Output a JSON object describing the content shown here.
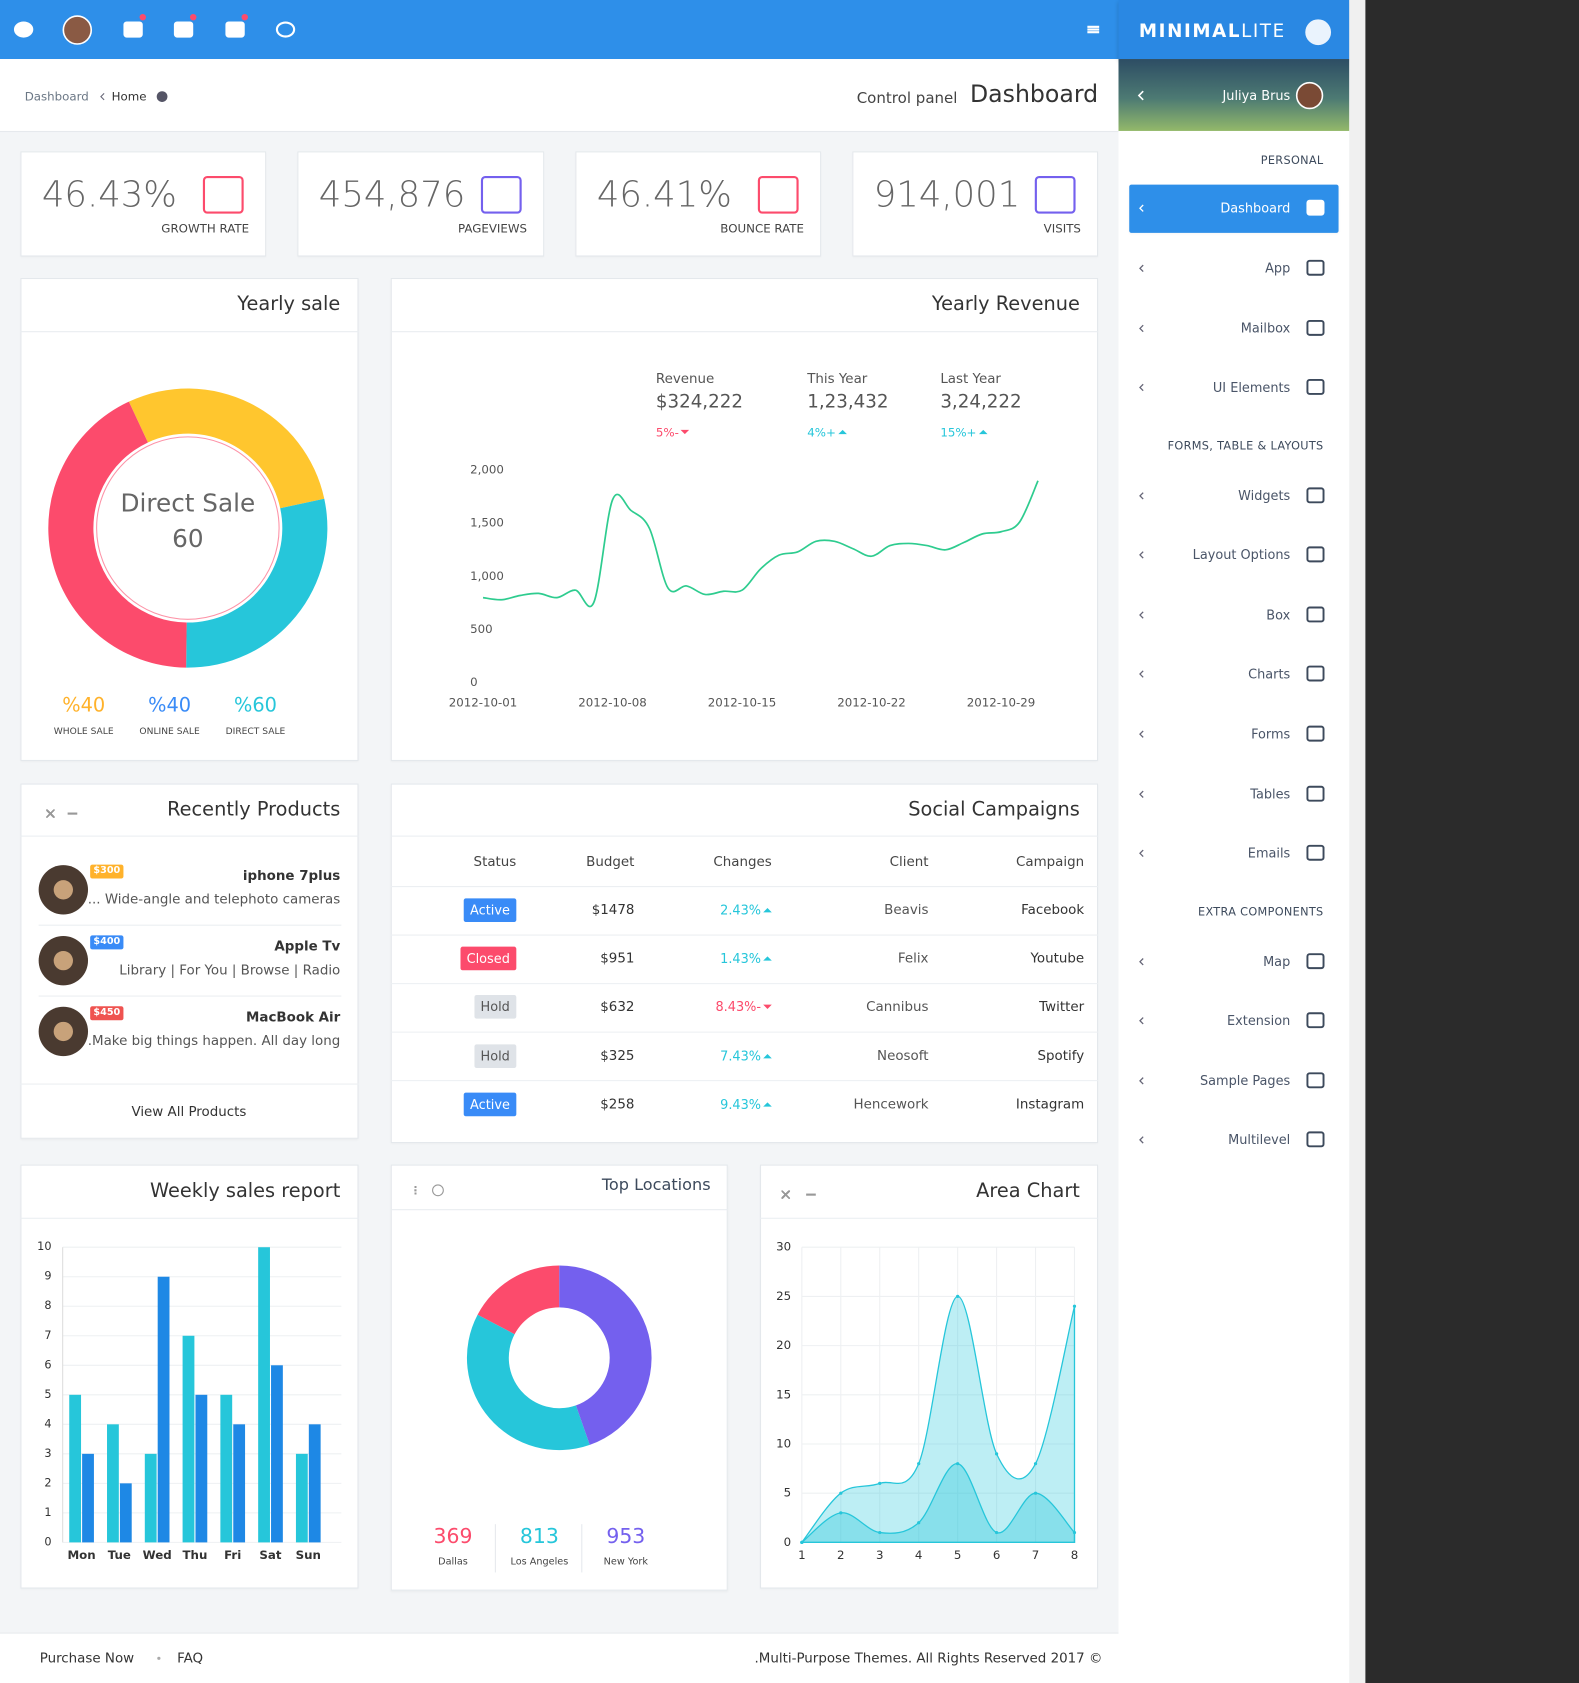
{
  "header": {
    "brand": "MINIMAL",
    "brand_suffix": "LITE",
    "user": "Juliya Brus"
  },
  "breadcrumb": {
    "items": [
      "Dashboard",
      "Home"
    ],
    "subtitle": "Control panel",
    "title": "Dashboard"
  },
  "sidebar": {
    "sections": [
      {
        "title": "PERSONAL",
        "items": [
          "Dashboard",
          "App",
          "Mailbox",
          "UI Elements"
        ]
      },
      {
        "title": "FORMS, TABLE & LAYOUTS",
        "items": [
          "Widgets",
          "Layout Options",
          "Box",
          "Charts",
          "Forms",
          "Tables",
          "Emails"
        ]
      },
      {
        "title": "EXTRA COMPONENTS",
        "items": [
          "Map",
          "Extension",
          "Sample Pages",
          "Multilevel"
        ]
      }
    ]
  },
  "stats": [
    {
      "value": "46.43%",
      "label": "GROWTH RATE"
    },
    {
      "value": "454,876",
      "label": "PAGEVIEWS"
    },
    {
      "value": "46.41%",
      "label": "BOUNCE RATE"
    },
    {
      "value": "914,001",
      "label": "VISITS"
    }
  ],
  "revenue_summary": [
    {
      "label": "Revenue",
      "value": "$324,222",
      "change": "5%-",
      "trend": "down"
    },
    {
      "label": "This Year",
      "value": "1,23,432",
      "change": "4%+",
      "trend": "up"
    },
    {
      "label": "Last Year",
      "value": "3,24,222",
      "change": "15%+",
      "trend": "up"
    }
  ],
  "products": {
    "title": "Recently Products",
    "items": [
      {
        "price": "$300",
        "price_color": "#ffb22b",
        "name": "iphone 7plus",
        "desc": "... Wide-angle and telephoto cameras"
      },
      {
        "price": "$400",
        "price_color": "#398bf7",
        "name": "Apple Tv",
        "desc": "Library | For You | Browse | Radio"
      },
      {
        "price": "$450",
        "price_color": "#ef5350",
        "name": "MacBook Air",
        "desc": ".Make big things happen. All day long"
      }
    ],
    "footer": "View All Products"
  },
  "campaigns": {
    "title": "Social Campaigns",
    "columns": [
      "Status",
      "Budget",
      "Changes",
      "Client",
      "Campaign"
    ],
    "rows": [
      {
        "status": "Active",
        "status_color": "#398bf7",
        "status_text_color": "#ffffff",
        "budget": "$1478",
        "change": "2.43%",
        "trend": "up",
        "client": "Beavis",
        "campaign": "Facebook"
      },
      {
        "status": "Closed",
        "status_color": "#fc4b6c",
        "status_text_color": "#ffffff",
        "budget": "$951",
        "change": "1.43%",
        "trend": "up",
        "client": "Felix",
        "campaign": "Youtube"
      },
      {
        "status": "Hold",
        "status_color": "#dfe3e8",
        "status_text_color": "#555555",
        "budget": "$632",
        "change": "8.43%-",
        "trend": "down",
        "client": "Cannibus",
        "campaign": "Twitter"
      },
      {
        "status": "Hold",
        "status_color": "#dfe3e8",
        "status_text_color": "#555555",
        "budget": "$325",
        "change": "7.43%",
        "trend": "up",
        "client": "Neosoft",
        "campaign": "Spotify"
      },
      {
        "status": "Active",
        "status_color": "#398bf7",
        "status_text_color": "#ffffff",
        "budget": "$258",
        "change": "9.43%",
        "trend": "up",
        "client": "Hencework",
        "campaign": "Instagram"
      }
    ]
  },
  "footer": {
    "links": [
      "Purchase Now",
      "FAQ"
    ],
    "copyright": ".Multi-Purpose Themes. All Rights Reserved 2017 ©"
  },
  "chart_data": [
    {
      "type": "doughnut",
      "title": "Yearly sale",
      "center_label": "Direct Sale",
      "center_value": 60,
      "categories": [
        "WHOLE SALE",
        "ONLINE SALE",
        "DIRECT SALE"
      ],
      "values": [
        40,
        40,
        60
      ],
      "value_labels": [
        "%40",
        "%40",
        "%60"
      ],
      "colors": [
        "#ffc62e",
        "#26c6da",
        "#fc4b6c"
      ]
    },
    {
      "type": "line",
      "title": "Yearly Revenue",
      "color": "#2ecc8f",
      "x": [
        "2012-10-01",
        "2012-10-02",
        "2012-10-03",
        "2012-10-04",
        "2012-10-05",
        "2012-10-06",
        "2012-10-07",
        "2012-10-08",
        "2012-10-09",
        "2012-10-10",
        "2012-10-11",
        "2012-10-12",
        "2012-10-13",
        "2012-10-14",
        "2012-10-15",
        "2012-10-16",
        "2012-10-17",
        "2012-10-18",
        "2012-10-19",
        "2012-10-20",
        "2012-10-21",
        "2012-10-22",
        "2012-10-23",
        "2012-10-24",
        "2012-10-25",
        "2012-10-26",
        "2012-10-27",
        "2012-10-28",
        "2012-10-29",
        "2012-10-30",
        "2012-10-31"
      ],
      "values": [
        800,
        780,
        820,
        840,
        800,
        870,
        760,
        1720,
        1620,
        1450,
        890,
        910,
        830,
        860,
        870,
        1070,
        1200,
        1230,
        1330,
        1330,
        1260,
        1190,
        1290,
        1310,
        1290,
        1250,
        1320,
        1400,
        1420,
        1510,
        1900
      ],
      "xticks": [
        "2012-10-01",
        "2012-10-08",
        "2012-10-15",
        "2012-10-22",
        "2012-10-29"
      ],
      "ylim": [
        0,
        2000
      ],
      "yticks": [
        0,
        500,
        {
          "value": 1000,
          "label": "1,000"
        },
        {
          "value": 1500,
          "label": "1,500"
        },
        {
          "value": 2000,
          "label": "2,000"
        }
      ]
    },
    {
      "type": "bar",
      "title": "Weekly sales report",
      "categories": [
        "Mon",
        "Tue",
        "Wed",
        "Thu",
        "Fri",
        "Sat",
        "Sun"
      ],
      "series": [
        {
          "color": "#26c6da",
          "values": [
            5,
            4,
            3,
            7,
            5,
            10,
            3
          ]
        },
        {
          "color": "#1e88e5",
          "values": [
            3,
            2,
            9,
            5,
            4,
            6,
            4
          ]
        }
      ],
      "ylim": [
        0,
        10
      ],
      "yticks": [
        0,
        1,
        2,
        3,
        4,
        5,
        6,
        7,
        8,
        9,
        10
      ],
      "grid": true
    },
    {
      "type": "doughnut",
      "title": "Top Locations",
      "categories": [
        "Dallas",
        "Los Angeles",
        "New York"
      ],
      "values": [
        369,
        813,
        953
      ],
      "colors": [
        "#fc4b6c",
        "#26c6da",
        "#7460ee"
      ]
    },
    {
      "type": "area",
      "title": "Area Chart",
      "x": [
        1,
        2,
        3,
        4,
        5,
        6,
        7,
        8
      ],
      "series": [
        {
          "color": "#26c6da",
          "values": [
            0,
            5,
            6,
            8,
            25,
            9,
            8,
            24
          ]
        },
        {
          "color": "#26c6da",
          "values": [
            0,
            3,
            1,
            2,
            8,
            1,
            5,
            1
          ]
        }
      ],
      "xlim": [
        1,
        8
      ],
      "xticks": [
        1,
        2,
        3,
        4,
        5,
        6,
        7,
        8
      ],
      "ylim": [
        0,
        30
      ],
      "yticks": [
        0,
        5,
        10,
        15,
        20,
        25,
        30
      ],
      "grid": true
    }
  ]
}
